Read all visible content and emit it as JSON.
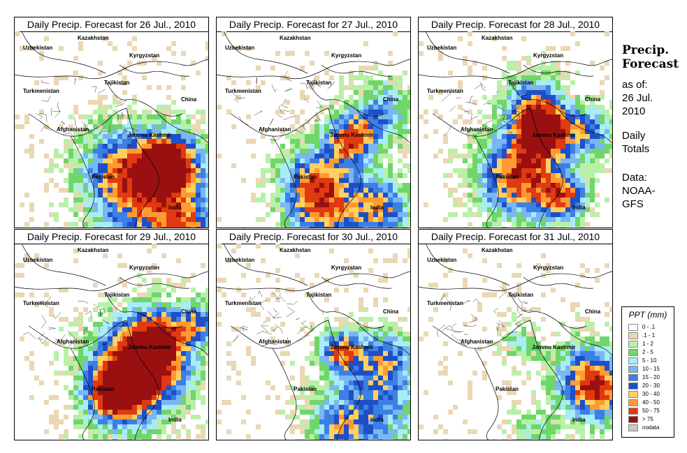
{
  "panels": [
    {
      "title": "Daily Precip. Forecast for  26 Jul., 2010"
    },
    {
      "title": "Daily Precip. Forecast for  27 Jul., 2010"
    },
    {
      "title": "Daily Precip. Forecast for  28 Jul., 2010"
    },
    {
      "title": "Daily Precip. Forecast for  29 Jul., 2010"
    },
    {
      "title": "Daily Precip. Forecast for  30 Jul., 2010"
    },
    {
      "title": "Daily Precip. Forecast for  31 Jul., 2010"
    }
  ],
  "map_labels": {
    "uzbekistan": "Uzbekistan",
    "kazakhstan": "Kazakhstan",
    "kyrgyzstan": "Kyrgyzstan",
    "tajikistan": "Tajikistan",
    "turkmenistan": "Turkmenistan",
    "china": "China",
    "jammu_kashmir": "Jammu Kashmir",
    "afghanistan": "Afghanistan",
    "pakistan": "Pakistan",
    "india": "India"
  },
  "sidebar": {
    "title_line1": "Precip.",
    "title_line2": "Forecast",
    "asof_line1": "as of:",
    "asof_line2": "26 Jul.",
    "asof_line3": "2010",
    "daily_line1": "Daily",
    "daily_line2": "Totals",
    "data_line1": "Data:",
    "data_line2": "NOAA-",
    "data_line3": "GFS"
  },
  "legend": {
    "title": "PPT (mm)",
    "items": [
      {
        "label": "0 - .1",
        "color": "#ffffff"
      },
      {
        "label": ".1 - 1",
        "color": "#ead7b4"
      },
      {
        "label": "1 - 2",
        "color": "#b9f0a7"
      },
      {
        "label": "2 - 5",
        "color": "#6fd66a"
      },
      {
        "label": "5 - 10",
        "color": "#a8ecf6"
      },
      {
        "label": "10 - 15",
        "color": "#7ab6f2"
      },
      {
        "label": "15 - 20",
        "color": "#3c7fe5"
      },
      {
        "label": "20 - 30",
        "color": "#1f4fc7"
      },
      {
        "label": "30 - 40",
        "color": "#ffd060"
      },
      {
        "label": "40 - 50",
        "color": "#ff9a30"
      },
      {
        "label": "50 - 75",
        "color": "#e03a10"
      },
      {
        "label": "> 75",
        "color": "#9a1010"
      },
      {
        "label": "nodata",
        "color": "#c8c8c8"
      }
    ]
  }
}
